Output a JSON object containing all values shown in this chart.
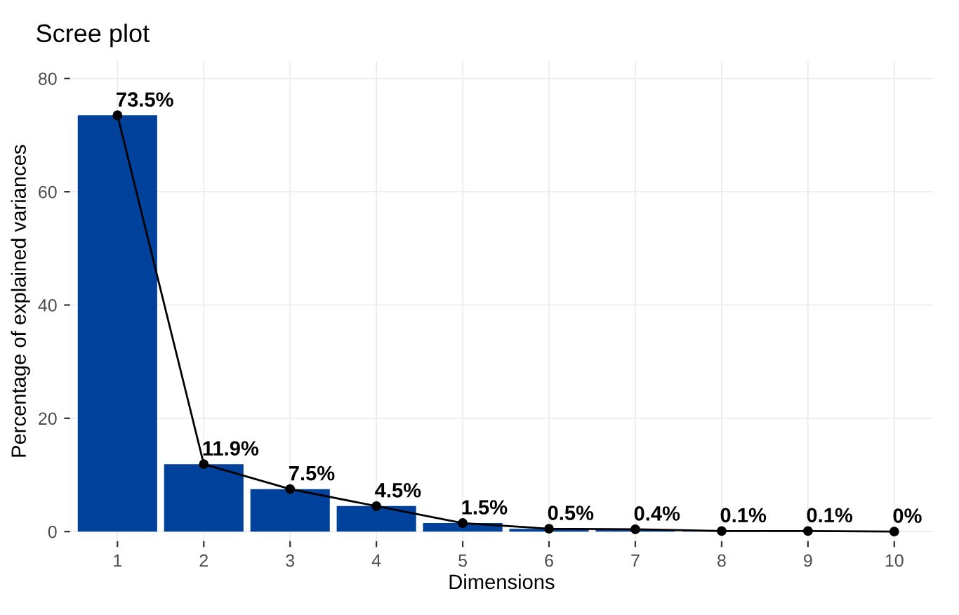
{
  "chart_data": {
    "type": "bar",
    "title": "Scree plot",
    "xlabel": "Dimensions",
    "ylabel": "Percentage of explained variances",
    "categories": [
      "1",
      "2",
      "3",
      "4",
      "5",
      "6",
      "7",
      "8",
      "9",
      "10"
    ],
    "series": [
      {
        "color": "#00429b",
        "values": [
          73.5,
          11.9,
          7.5,
          4.5,
          1.5,
          0.5,
          0.4,
          0.1,
          0.1,
          0
        ],
        "value_labels": [
          "73.5%",
          "11.9%",
          "7.5%",
          "4.5%",
          "1.5%",
          "0.5%",
          "0.4%",
          "0.1%",
          "0.1%",
          "0%"
        ]
      },
      {
        "type": "line",
        "color": "#000000",
        "values": [
          73.5,
          11.9,
          7.5,
          4.5,
          1.5,
          0.5,
          0.4,
          0.1,
          0.1,
          0
        ],
        "marker": "circle",
        "line_style": "solid"
      }
    ],
    "ylim": [
      -1.7,
      83
    ],
    "yticks": [
      0,
      20,
      40,
      60,
      80
    ],
    "grid": true,
    "legend": false
  }
}
